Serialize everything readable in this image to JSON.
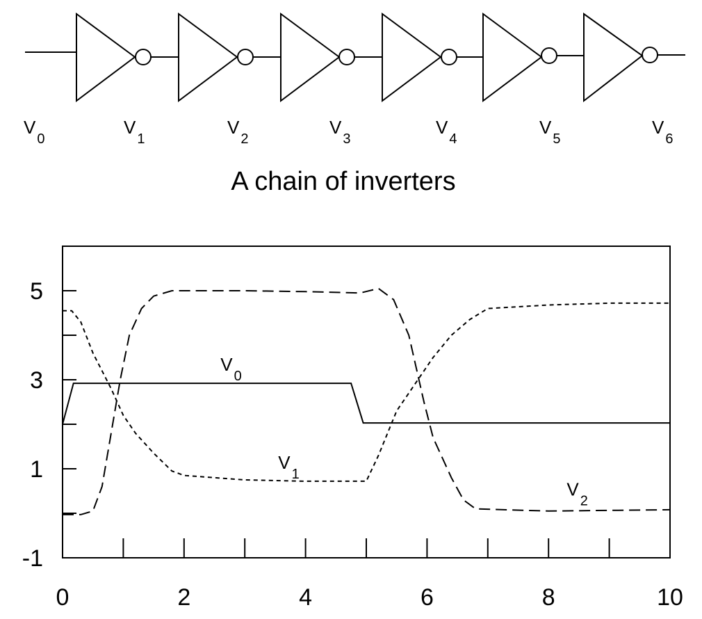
{
  "diagram": {
    "title": "A chain of inverters",
    "node_labels": [
      {
        "letter": "V",
        "sub": "0"
      },
      {
        "letter": "V",
        "sub": "1"
      },
      {
        "letter": "V",
        "sub": "2"
      },
      {
        "letter": "V",
        "sub": "3"
      },
      {
        "letter": "V",
        "sub": "4"
      },
      {
        "letter": "V",
        "sub": "5"
      },
      {
        "letter": "V",
        "sub": "6"
      }
    ],
    "inverter_count": 6
  },
  "chart_data": {
    "type": "line",
    "title": "",
    "xlabel": "",
    "ylabel": "",
    "xlim": [
      0,
      10
    ],
    "ylim": [
      -1,
      6
    ],
    "x_ticks": [
      0,
      2,
      4,
      6,
      8,
      10
    ],
    "x_tick_labels": [
      "0",
      "2",
      "4",
      "6",
      "8",
      "10"
    ],
    "y_ticks": [
      -1,
      1,
      3,
      5
    ],
    "y_tick_labels": [
      "-1",
      "1",
      "3",
      "5"
    ],
    "x_minor_ticks": [
      1,
      2,
      3,
      4,
      5,
      6,
      7,
      8,
      9
    ],
    "y_minor_ticks": [
      0,
      2,
      4
    ],
    "series": [
      {
        "name": "V0",
        "letter": "V",
        "sub": "0",
        "style": "solid",
        "label_at": [
          2.6,
          3.2
        ],
        "points": [
          [
            0,
            2
          ],
          [
            0.18,
            2.92
          ],
          [
            4.75,
            2.92
          ],
          [
            4.95,
            2.03
          ],
          [
            10,
            2.03
          ]
        ]
      },
      {
        "name": "V1",
        "letter": "V",
        "sub": "1",
        "style": "short-dash",
        "label_at": [
          3.55,
          1.0
        ],
        "points": [
          [
            0,
            4.55
          ],
          [
            0.15,
            4.55
          ],
          [
            0.3,
            4.3
          ],
          [
            0.5,
            3.6
          ],
          [
            0.8,
            2.8
          ],
          [
            1.0,
            2.2
          ],
          [
            1.2,
            1.8
          ],
          [
            1.5,
            1.35
          ],
          [
            1.8,
            0.95
          ],
          [
            2.0,
            0.85
          ],
          [
            2.5,
            0.8
          ],
          [
            3.0,
            0.75
          ],
          [
            4.0,
            0.72
          ],
          [
            5.0,
            0.72
          ],
          [
            5.2,
            1.3
          ],
          [
            5.5,
            2.3
          ],
          [
            5.8,
            2.9
          ],
          [
            6.1,
            3.5
          ],
          [
            6.4,
            4.0
          ],
          [
            6.7,
            4.35
          ],
          [
            7.0,
            4.6
          ],
          [
            8.0,
            4.68
          ],
          [
            9.0,
            4.72
          ],
          [
            10,
            4.72
          ]
        ]
      },
      {
        "name": "V2",
        "letter": "V",
        "sub": "2",
        "style": "long-dash",
        "label_at": [
          8.3,
          0.4
        ],
        "points": [
          [
            0,
            -0.03
          ],
          [
            0.3,
            -0.03
          ],
          [
            0.5,
            0.05
          ],
          [
            0.65,
            0.6
          ],
          [
            0.8,
            1.8
          ],
          [
            0.95,
            3.0
          ],
          [
            1.1,
            4.0
          ],
          [
            1.3,
            4.6
          ],
          [
            1.5,
            4.88
          ],
          [
            1.8,
            5.0
          ],
          [
            3.0,
            5.0
          ],
          [
            4.0,
            4.98
          ],
          [
            4.9,
            4.95
          ],
          [
            5.2,
            5.05
          ],
          [
            5.45,
            4.8
          ],
          [
            5.7,
            4.0
          ],
          [
            5.95,
            2.5
          ],
          [
            6.1,
            1.7
          ],
          [
            6.4,
            0.8
          ],
          [
            6.6,
            0.3
          ],
          [
            6.8,
            0.1
          ],
          [
            8.0,
            0.05
          ],
          [
            10,
            0.08
          ]
        ]
      }
    ]
  }
}
